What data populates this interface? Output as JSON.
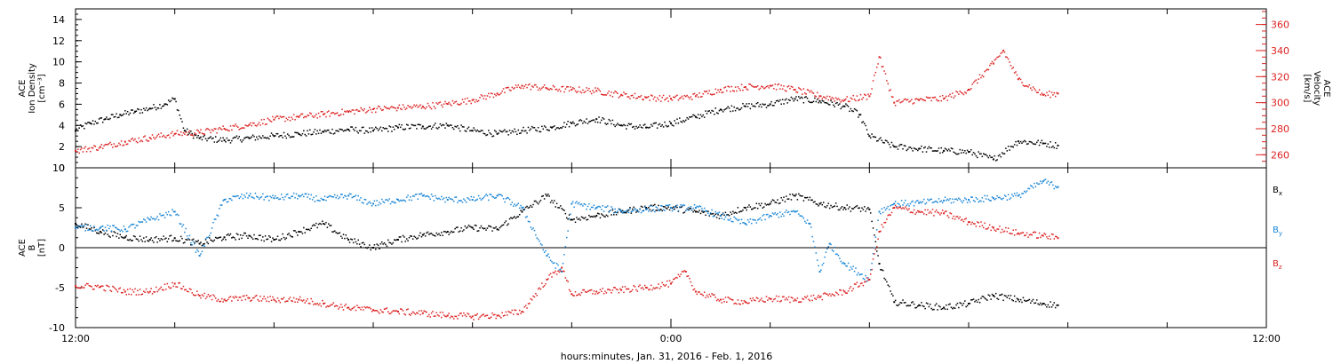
{
  "chart_data": [
    {
      "type": "scatter",
      "panel": "top",
      "left_axis": {
        "label_lines": [
          "ACE",
          "Ion Density",
          "[cm⁻³]"
        ],
        "ylim": [
          0,
          15
        ],
        "ticks": [
          0,
          2,
          4,
          6,
          8,
          10,
          12,
          14
        ],
        "color": "#000000"
      },
      "right_axis": {
        "label_lines": [
          "ACE",
          "Velocity",
          "[km/s]"
        ],
        "ylim": [
          250,
          372
        ],
        "ticks": [
          260,
          280,
          300,
          320,
          340,
          360
        ],
        "color": "#dd2222"
      },
      "series": [
        {
          "axis": "left",
          "color": "#000000",
          "points": [
            [
              0,
              3.5
            ],
            [
              0.3,
              4.2
            ],
            [
              0.6,
              4.6
            ],
            [
              0.9,
              5.0
            ],
            [
              1.2,
              5.3
            ],
            [
              1.5,
              5.6
            ],
            [
              1.8,
              6.0
            ],
            [
              2.0,
              6.5
            ],
            [
              2.2,
              3.5
            ],
            [
              2.5,
              2.8
            ],
            [
              3.0,
              2.6
            ],
            [
              3.5,
              2.8
            ],
            [
              4.0,
              3.0
            ],
            [
              4.5,
              3.2
            ],
            [
              5.0,
              3.4
            ],
            [
              5.5,
              3.6
            ],
            [
              6.0,
              3.5
            ],
            [
              6.5,
              3.8
            ],
            [
              7.0,
              3.9
            ],
            [
              7.5,
              4.0
            ],
            [
              8.0,
              3.5
            ],
            [
              8.5,
              3.2
            ],
            [
              9.0,
              3.5
            ],
            [
              9.6,
              3.8
            ],
            [
              10.0,
              4.2
            ],
            [
              10.5,
              4.6
            ],
            [
              11.0,
              4.0
            ],
            [
              11.5,
              3.8
            ],
            [
              12.0,
              4.2
            ],
            [
              12.5,
              4.8
            ],
            [
              13.0,
              5.5
            ],
            [
              13.5,
              5.8
            ],
            [
              14.0,
              6.0
            ],
            [
              14.5,
              6.5
            ],
            [
              15.0,
              6.3
            ],
            [
              15.5,
              5.8
            ],
            [
              15.8,
              5.0
            ],
            [
              16.0,
              3.0
            ],
            [
              16.5,
              2.0
            ],
            [
              17.0,
              1.8
            ],
            [
              17.5,
              1.6
            ],
            [
              18.0,
              1.5
            ],
            [
              18.5,
              0.8
            ],
            [
              19.0,
              2.5
            ],
            [
              19.5,
              2.3
            ],
            [
              19.8,
              2.1
            ]
          ]
        },
        {
          "axis": "right",
          "color": "#dd2222",
          "points": [
            [
              0,
              263
            ],
            [
              0.5,
              266
            ],
            [
              1.0,
              270
            ],
            [
              1.5,
              273
            ],
            [
              2.0,
              276
            ],
            [
              2.5,
              277
            ],
            [
              3.0,
              280
            ],
            [
              3.5,
              283
            ],
            [
              4.0,
              287
            ],
            [
              4.5,
              289
            ],
            [
              5.0,
              291
            ],
            [
              5.5,
              293
            ],
            [
              6.0,
              295
            ],
            [
              6.5,
              296
            ],
            [
              7.0,
              297
            ],
            [
              7.5,
              299
            ],
            [
              8.0,
              302
            ],
            [
              8.5,
              307
            ],
            [
              9.0,
              313
            ],
            [
              9.5,
              311
            ],
            [
              10.0,
              310
            ],
            [
              10.5,
              309
            ],
            [
              11.0,
              306
            ],
            [
              11.5,
              304
            ],
            [
              12.0,
              303
            ],
            [
              12.5,
              305
            ],
            [
              13.0,
              310
            ],
            [
              13.5,
              312
            ],
            [
              14.0,
              313
            ],
            [
              14.5,
              310
            ],
            [
              15.0,
              305
            ],
            [
              15.5,
              302
            ],
            [
              16.0,
              305
            ],
            [
              16.2,
              335
            ],
            [
              16.5,
              300
            ],
            [
              17.0,
              302
            ],
            [
              17.5,
              303
            ],
            [
              18.0,
              310
            ],
            [
              18.5,
              330
            ],
            [
              18.7,
              340
            ],
            [
              19.0,
              318
            ],
            [
              19.5,
              306
            ],
            [
              19.8,
              307
            ]
          ]
        }
      ]
    },
    {
      "type": "scatter",
      "panel": "bottom",
      "left_axis": {
        "label_lines": [
          "ACE",
          "B",
          "[nT]"
        ],
        "ylim": [
          -10,
          10
        ],
        "ticks": [
          -10,
          -5,
          0,
          5,
          10
        ],
        "color": "#000000"
      },
      "zero_line": true,
      "legend_position": "right",
      "series": [
        {
          "name": "Bx",
          "color": "#000000",
          "points": [
            [
              0,
              3.0
            ],
            [
              0.5,
              2.0
            ],
            [
              1.0,
              1.3
            ],
            [
              1.5,
              1.0
            ],
            [
              2.0,
              1.2
            ],
            [
              2.5,
              0.5
            ],
            [
              3.0,
              1.3
            ],
            [
              3.5,
              1.5
            ],
            [
              4.0,
              1.0
            ],
            [
              4.5,
              2.0
            ],
            [
              5.0,
              3.0
            ],
            [
              5.5,
              1.0
            ],
            [
              6.0,
              0.0
            ],
            [
              6.5,
              1.0
            ],
            [
              7.0,
              1.6
            ],
            [
              7.5,
              2.0
            ],
            [
              8.0,
              2.5
            ],
            [
              8.5,
              2.3
            ],
            [
              9.0,
              4.5
            ],
            [
              9.5,
              6.5
            ],
            [
              10.0,
              3.5
            ],
            [
              10.5,
              4.0
            ],
            [
              11.0,
              4.5
            ],
            [
              11.5,
              5.0
            ],
            [
              12.0,
              5.0
            ],
            [
              12.5,
              4.5
            ],
            [
              13.0,
              4.0
            ],
            [
              13.5,
              5.0
            ],
            [
              14.0,
              5.5
            ],
            [
              14.5,
              6.5
            ],
            [
              15.0,
              5.5
            ],
            [
              15.5,
              5.0
            ],
            [
              16.0,
              4.8
            ],
            [
              16.2,
              -2.0
            ],
            [
              16.5,
              -6.8
            ],
            [
              17.0,
              -7.2
            ],
            [
              17.5,
              -7.5
            ],
            [
              18.0,
              -7.0
            ],
            [
              18.5,
              -6.0
            ],
            [
              19.0,
              -6.5
            ],
            [
              19.5,
              -7.0
            ],
            [
              19.8,
              -7.2
            ]
          ]
        },
        {
          "name": "By",
          "color": "#1a86d6",
          "points": [
            [
              0,
              2.5
            ],
            [
              0.5,
              2.5
            ],
            [
              1.0,
              2.3
            ],
            [
              1.5,
              3.5
            ],
            [
              2.0,
              4.5
            ],
            [
              2.5,
              -1.0
            ],
            [
              3.0,
              6.0
            ],
            [
              3.5,
              6.5
            ],
            [
              4.0,
              6.2
            ],
            [
              4.5,
              6.5
            ],
            [
              5.0,
              6.0
            ],
            [
              5.5,
              6.5
            ],
            [
              6.0,
              5.5
            ],
            [
              6.5,
              6.0
            ],
            [
              7.0,
              6.5
            ],
            [
              7.5,
              6.0
            ],
            [
              8.0,
              6.0
            ],
            [
              8.5,
              6.5
            ],
            [
              9.0,
              5.0
            ],
            [
              9.5,
              -1.0
            ],
            [
              9.8,
              -3.0
            ],
            [
              10.0,
              5.5
            ],
            [
              10.5,
              5.0
            ],
            [
              11.0,
              4.6
            ],
            [
              11.5,
              4.8
            ],
            [
              12.0,
              5.0
            ],
            [
              12.5,
              5.0
            ],
            [
              13.0,
              4.0
            ],
            [
              13.5,
              3.0
            ],
            [
              14.0,
              4.0
            ],
            [
              14.5,
              4.5
            ],
            [
              14.8,
              3.0
            ],
            [
              15.0,
              -3.0
            ],
            [
              15.2,
              0.5
            ],
            [
              15.5,
              -2.0
            ],
            [
              16.0,
              -4.0
            ],
            [
              16.2,
              4.5
            ],
            [
              16.5,
              5.5
            ],
            [
              17.0,
              5.6
            ],
            [
              17.5,
              5.9
            ],
            [
              18.0,
              6.0
            ],
            [
              18.5,
              6.2
            ],
            [
              19.0,
              6.5
            ],
            [
              19.5,
              8.3
            ],
            [
              19.8,
              7.6
            ]
          ]
        },
        {
          "name": "Bz",
          "color": "#dd2222",
          "points": [
            [
              0,
              -4.8
            ],
            [
              0.5,
              -4.9
            ],
            [
              1.0,
              -5.5
            ],
            [
              1.5,
              -5.5
            ],
            [
              2.0,
              -4.5
            ],
            [
              2.5,
              -6.0
            ],
            [
              3.0,
              -6.5
            ],
            [
              3.5,
              -6.3
            ],
            [
              4.0,
              -6.5
            ],
            [
              4.5,
              -6.5
            ],
            [
              5.0,
              -7.0
            ],
            [
              5.5,
              -7.5
            ],
            [
              6.0,
              -7.8
            ],
            [
              6.5,
              -8.0
            ],
            [
              7.0,
              -8.2
            ],
            [
              7.5,
              -8.5
            ],
            [
              8.0,
              -8.6
            ],
            [
              8.5,
              -8.5
            ],
            [
              9.0,
              -8.0
            ],
            [
              9.5,
              -4.0
            ],
            [
              9.8,
              -2.5
            ],
            [
              10.0,
              -5.8
            ],
            [
              10.5,
              -5.5
            ],
            [
              11.0,
              -5.3
            ],
            [
              11.5,
              -5.0
            ],
            [
              12.0,
              -4.5
            ],
            [
              12.3,
              -3.0
            ],
            [
              12.5,
              -5.5
            ],
            [
              13.0,
              -6.5
            ],
            [
              13.5,
              -6.8
            ],
            [
              14.0,
              -6.4
            ],
            [
              14.5,
              -6.5
            ],
            [
              15.0,
              -6.2
            ],
            [
              15.5,
              -5.5
            ],
            [
              16.0,
              -4.0
            ],
            [
              16.2,
              2.0
            ],
            [
              16.5,
              5.0
            ],
            [
              17.0,
              4.5
            ],
            [
              17.5,
              4.3
            ],
            [
              18.0,
              3.2
            ],
            [
              18.5,
              2.5
            ],
            [
              19.0,
              1.8
            ],
            [
              19.5,
              1.5
            ],
            [
              19.8,
              1.2
            ]
          ]
        }
      ]
    }
  ],
  "x_axis": {
    "xlim": [
      0,
      24
    ],
    "tick_labels": [
      {
        "x": 0,
        "label": "12:00"
      },
      {
        "x": 12,
        "label": "0:00"
      },
      {
        "x": 24,
        "label": "12:00"
      }
    ],
    "minor_tick_interval": 2,
    "caption": "hours:minutes, Jan. 31, 2016 - Feb.  1, 2016"
  },
  "legend": {
    "labels": [
      {
        "text": "B",
        "sub": "x",
        "color": "#000000"
      },
      {
        "text": "B",
        "sub": "y",
        "color": "#1a86d6"
      },
      {
        "text": "B",
        "sub": "z",
        "color": "#dd2222"
      }
    ]
  }
}
